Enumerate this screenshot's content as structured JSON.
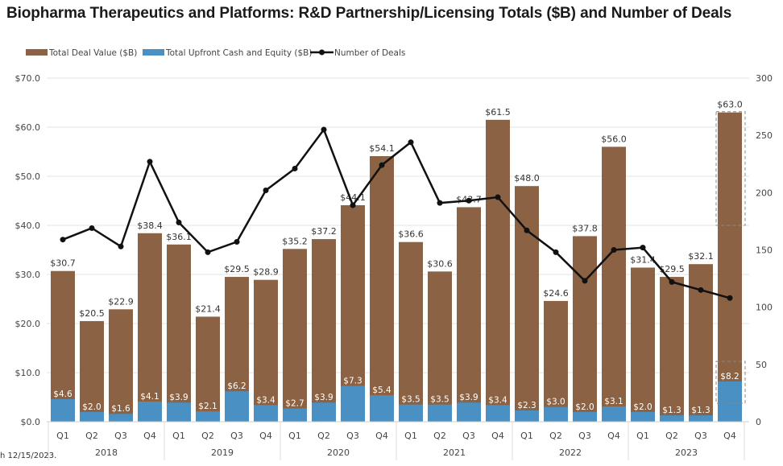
{
  "chart_data": {
    "type": "bar",
    "title": "Biopharma Therapeutics and Platforms: R&D Partnership/Licensing Totals ($B) and Number of Deals",
    "categories": [
      "Q1",
      "Q2",
      "Q3",
      "Q4",
      "Q1",
      "Q2",
      "Q3",
      "Q4",
      "Q1",
      "Q2",
      "Q3",
      "Q4",
      "Q1",
      "Q2",
      "Q3",
      "Q4",
      "Q1",
      "Q2",
      "Q3",
      "Q4",
      "Q1",
      "Q2",
      "Q3",
      "Q4"
    ],
    "years": [
      "2018",
      "2019",
      "2020",
      "2021",
      "2022",
      "2023"
    ],
    "series": [
      {
        "name": "Total Deal Value ($B)",
        "type": "bar",
        "color": "#8B6243",
        "axis": "left",
        "values": [
          30.7,
          20.5,
          22.9,
          38.4,
          36.1,
          21.4,
          29.5,
          28.9,
          35.2,
          37.2,
          44.1,
          54.1,
          36.6,
          30.6,
          43.7,
          61.5,
          48.0,
          24.6,
          37.8,
          56.0,
          31.4,
          29.5,
          32.1,
          63.0
        ]
      },
      {
        "name": "Total Upfront Cash and Equity ($B)",
        "type": "bar",
        "color": "#4A90C2",
        "axis": "left",
        "values": [
          4.6,
          2.0,
          1.6,
          4.1,
          3.9,
          2.1,
          6.2,
          3.4,
          2.7,
          3.9,
          7.3,
          5.4,
          3.5,
          3.5,
          3.9,
          3.4,
          2.3,
          3.0,
          2.0,
          3.1,
          2.0,
          1.3,
          1.3,
          8.2
        ]
      },
      {
        "name": "Number of Deals",
        "type": "line",
        "color": "#111111",
        "axis": "right",
        "values": [
          159,
          169,
          153,
          227,
          174,
          148,
          157,
          202,
          221,
          255,
          189,
          224,
          244,
          191,
          193,
          196,
          167,
          148,
          123,
          150,
          152,
          122,
          115,
          108
        ]
      }
    ],
    "ylim": [
      0,
      70
    ],
    "yticks": [
      "$0.0",
      "$10.0",
      "$20.0",
      "$30.0",
      "$40.0",
      "$50.0",
      "$60.0",
      "$70.0"
    ],
    "y2lim": [
      0,
      300
    ],
    "y2ticks": [
      "0",
      "50",
      "100",
      "150",
      "200",
      "250",
      "300"
    ],
    "legend": "top-left",
    "grid": true
  },
  "footnote": "h 12/15/2023."
}
